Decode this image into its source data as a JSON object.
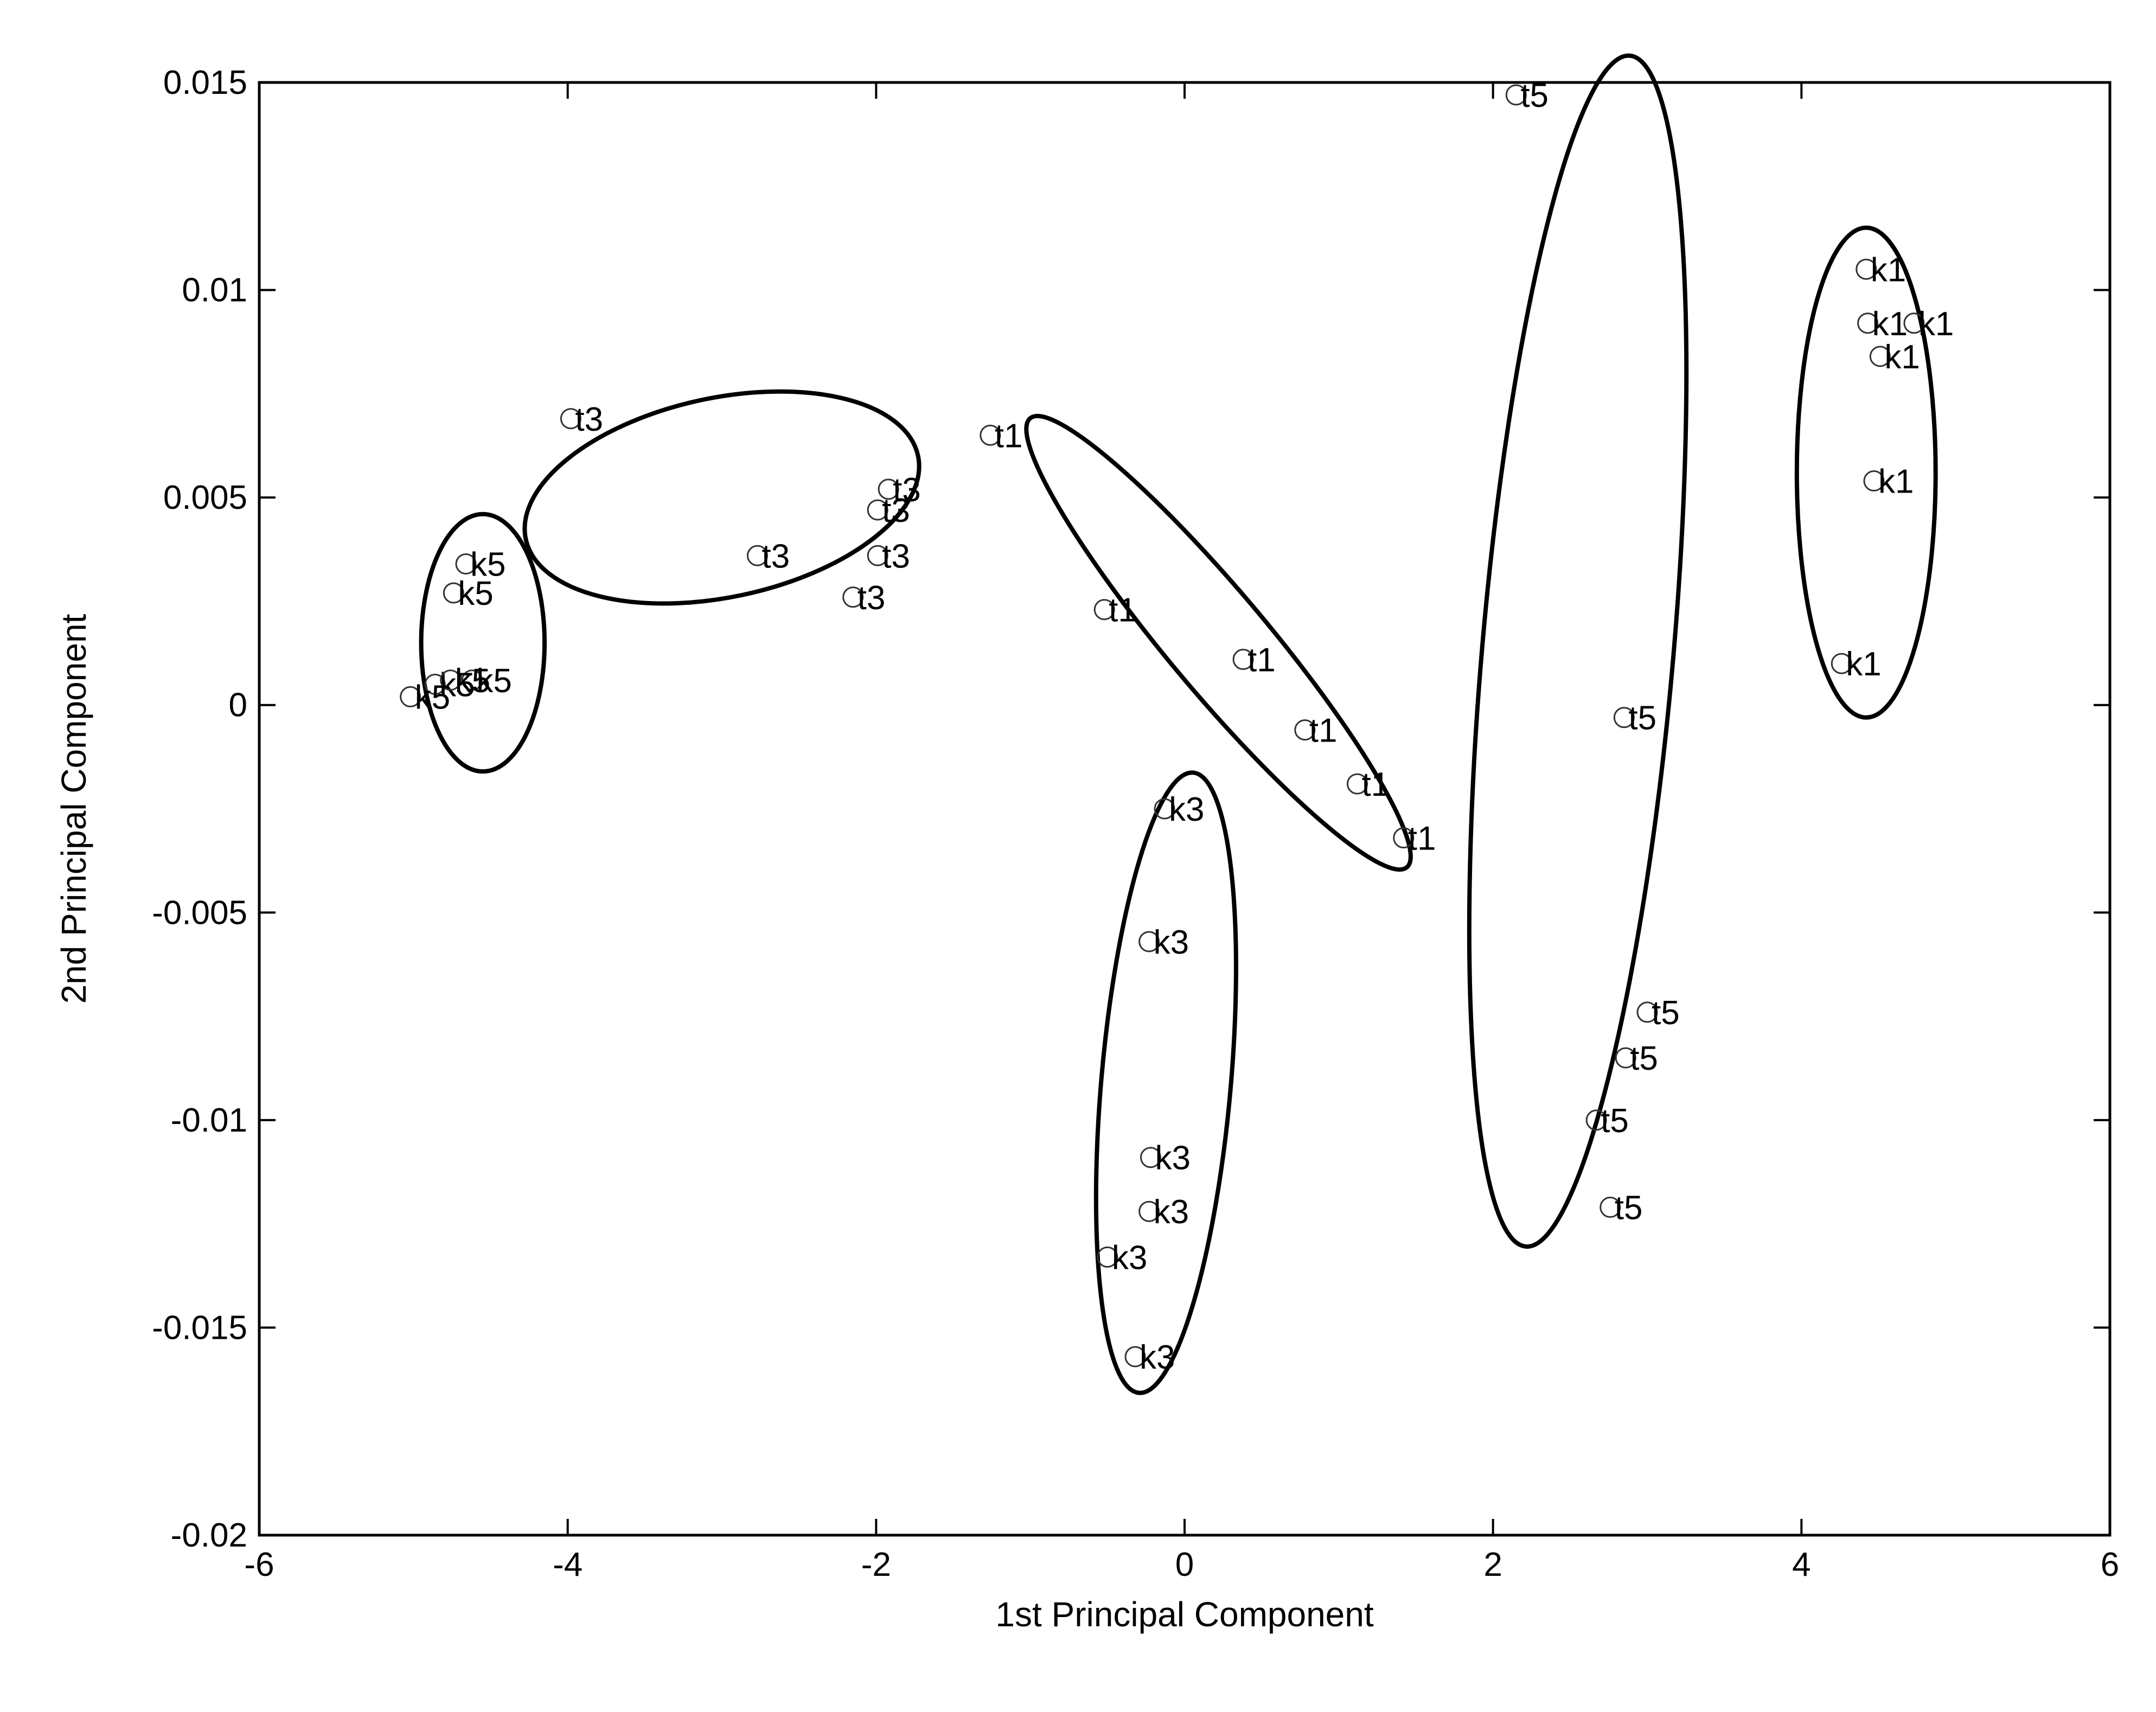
{
  "chart_data": {
    "type": "scatter",
    "title": "",
    "xlabel": "1st Principal Component",
    "ylabel": "2nd Principal Component",
    "xlim": [
      -6,
      6
    ],
    "ylim": [
      -0.02,
      0.015
    ],
    "xticks": [
      -6,
      -4,
      -2,
      0,
      2,
      4,
      6
    ],
    "yticks": [
      -0.02,
      -0.015,
      -0.01,
      -0.005,
      0,
      0.005,
      0.01,
      0.015
    ],
    "xtick_labels": [
      "-6",
      "-4",
      "-2",
      "0",
      "2",
      "4",
      "6"
    ],
    "ytick_labels": [
      "-0.02",
      "-0.015",
      "-0.01",
      "-0.005",
      "0",
      "0.005",
      "0.01",
      "0.015"
    ],
    "grid": false,
    "marker": "circle",
    "points": [
      {
        "x": 4.42,
        "y": 0.0105,
        "label": "k1"
      },
      {
        "x": 4.43,
        "y": 0.0092,
        "label": "k1"
      },
      {
        "x": 4.73,
        "y": 0.0092,
        "label": "k1"
      },
      {
        "x": 4.51,
        "y": 0.0084,
        "label": "k1"
      },
      {
        "x": 4.47,
        "y": 0.0054,
        "label": "k1"
      },
      {
        "x": 4.26,
        "y": 0.001,
        "label": "k1"
      },
      {
        "x": -3.98,
        "y": 0.0069,
        "label": "t3"
      },
      {
        "x": -1.92,
        "y": 0.0052,
        "label": "t3"
      },
      {
        "x": -1.99,
        "y": 0.0047,
        "label": "t3"
      },
      {
        "x": -2.77,
        "y": 0.0036,
        "label": "t3"
      },
      {
        "x": -1.99,
        "y": 0.0036,
        "label": "t3"
      },
      {
        "x": -2.15,
        "y": 0.0026,
        "label": "t3"
      },
      {
        "x": -4.66,
        "y": 0.0034,
        "label": "k5"
      },
      {
        "x": -4.74,
        "y": 0.0027,
        "label": "k5"
      },
      {
        "x": -4.62,
        "y": 0.0006,
        "label": "k5"
      },
      {
        "x": -4.86,
        "y": 0.0005,
        "label": "k5"
      },
      {
        "x": -4.76,
        "y": 0.0006,
        "label": "k5"
      },
      {
        "x": -5.02,
        "y": 0.0002,
        "label": "k5"
      },
      {
        "x": -1.26,
        "y": 0.0065,
        "label": "t1"
      },
      {
        "x": -0.52,
        "y": 0.0023,
        "label": "t1"
      },
      {
        "x": 0.38,
        "y": 0.0011,
        "label": "t1"
      },
      {
        "x": 0.78,
        "y": -0.0006,
        "label": "t1"
      },
      {
        "x": 1.12,
        "y": -0.0019,
        "label": "t1"
      },
      {
        "x": 1.42,
        "y": -0.0032,
        "label": "t1"
      },
      {
        "x": -0.13,
        "y": -0.0025,
        "label": "k3"
      },
      {
        "x": -0.23,
        "y": -0.0057,
        "label": "k3"
      },
      {
        "x": -0.22,
        "y": -0.0109,
        "label": "k3"
      },
      {
        "x": -0.23,
        "y": -0.0122,
        "label": "k3"
      },
      {
        "x": -0.5,
        "y": -0.0133,
        "label": "k3"
      },
      {
        "x": -0.32,
        "y": -0.0157,
        "label": "k3"
      },
      {
        "x": 2.15,
        "y": 0.0147,
        "label": "t5"
      },
      {
        "x": 2.85,
        "y": -0.0003,
        "label": "t5"
      },
      {
        "x": 3.0,
        "y": -0.0074,
        "label": "t5"
      },
      {
        "x": 2.86,
        "y": -0.0085,
        "label": "t5"
      },
      {
        "x": 2.67,
        "y": -0.01,
        "label": "t5"
      },
      {
        "x": 2.76,
        "y": -0.0121,
        "label": "t5"
      }
    ],
    "ellipses": [
      {
        "cx": 4.42,
        "cy": 0.0056,
        "rx": 0.45,
        "ry": 0.0059,
        "angle": 0
      },
      {
        "cx": -3.0,
        "cy": 0.005,
        "rx": 1.3,
        "ry": 0.0024,
        "angle": -12
      },
      {
        "cx": -4.55,
        "cy": 0.0015,
        "rx": 0.4,
        "ry": 0.0031,
        "angle": 0
      },
      {
        "cx": 0.22,
        "cy": 0.0015,
        "rx": 1.9,
        "ry": 0.0012,
        "angle": 50
      },
      {
        "cx": -0.12,
        "cy": -0.0091,
        "rx": 0.42,
        "ry": 0.0075,
        "angle": 5
      },
      {
        "cx": 2.55,
        "cy": 0.0013,
        "rx": 0.62,
        "ry": 0.0144,
        "angle": 5
      }
    ]
  }
}
